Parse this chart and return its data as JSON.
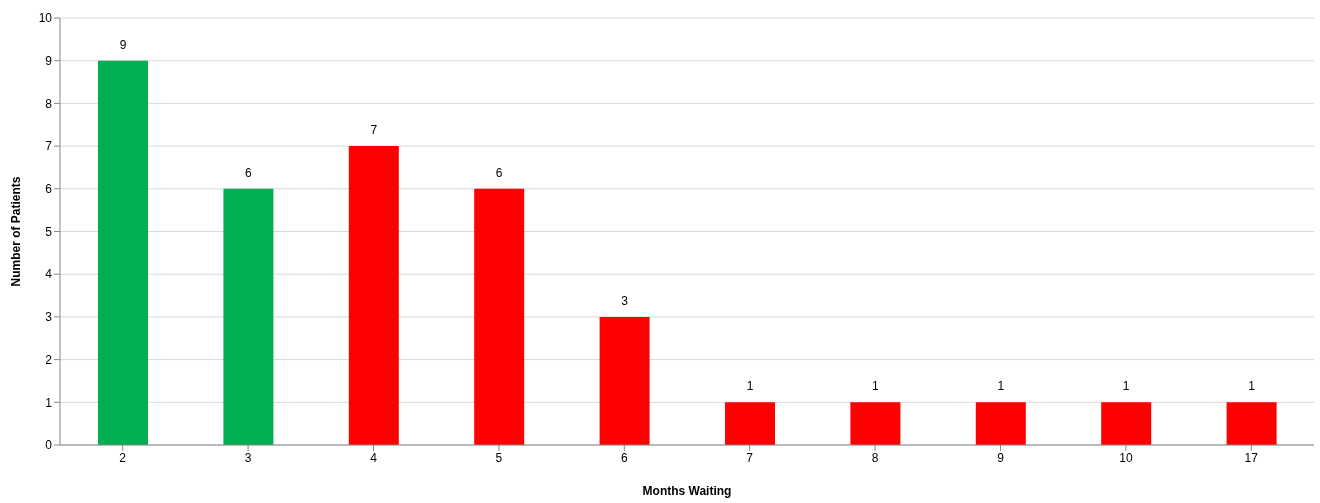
{
  "chart_data": {
    "type": "bar",
    "xlabel": "Months Waiting",
    "ylabel": "Number of Patients",
    "categories": [
      "2",
      "3",
      "4",
      "5",
      "6",
      "7",
      "8",
      "9",
      "10",
      "17"
    ],
    "values": [
      9,
      6,
      7,
      6,
      3,
      1,
      1,
      1,
      1,
      1
    ],
    "colors": [
      "#00b050",
      "#00b050",
      "#ff0000",
      "#ff0000",
      "#ff0000",
      "#ff0000",
      "#ff0000",
      "#ff0000",
      "#ff0000",
      "#ff0000"
    ],
    "ylim": [
      0,
      10
    ],
    "yticks": [
      0,
      1,
      2,
      3,
      4,
      5,
      6,
      7,
      8,
      9,
      10
    ],
    "grid": "y",
    "data_labels": true
  }
}
